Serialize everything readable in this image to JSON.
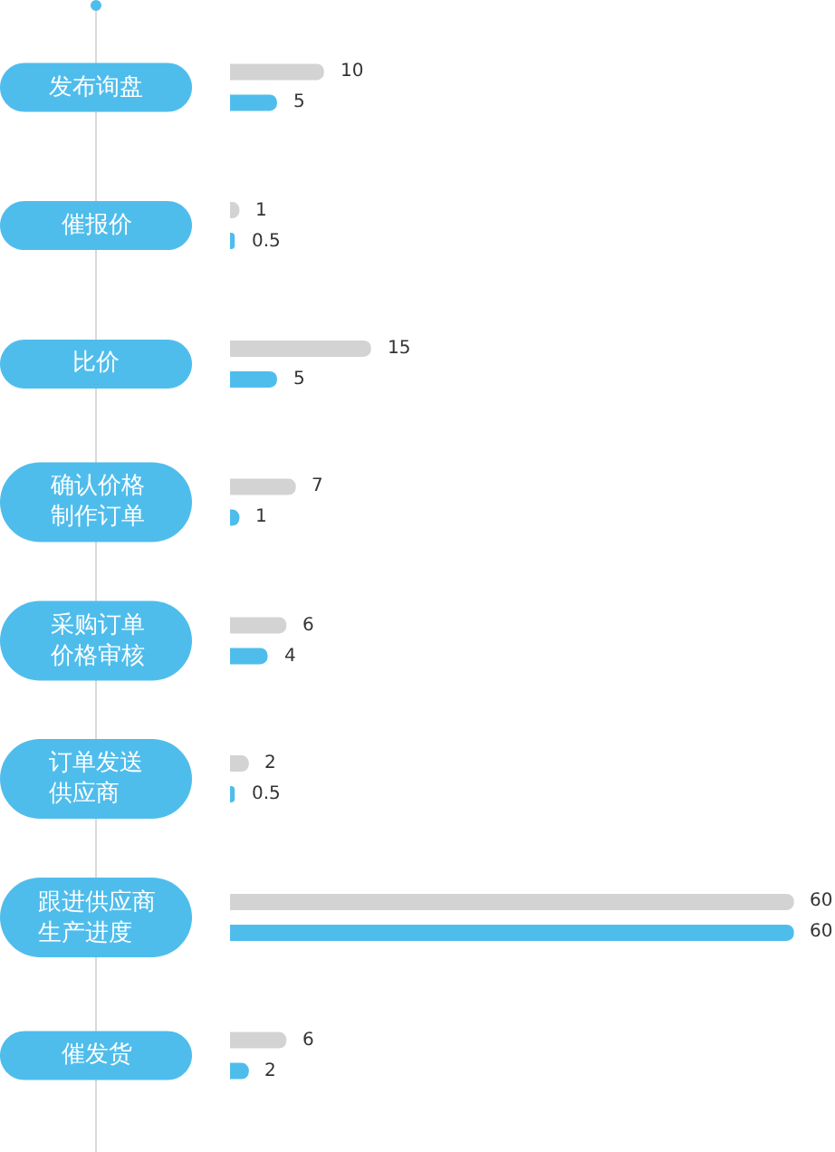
{
  "chart_data": {
    "type": "bar",
    "orientation": "horizontal",
    "categories": [
      "发布询盘",
      "催报价",
      "比价",
      "确认价格制作订单",
      "采购订单价格审核",
      "订单发送供应商",
      "跟进供应商生产进度",
      "催发货"
    ],
    "series": [
      {
        "color": "#d3d3d3",
        "values": [
          10,
          1,
          15,
          7,
          6,
          2,
          60,
          6
        ]
      },
      {
        "color": "#4fbdec",
        "values": [
          5,
          0.5,
          5,
          1,
          4,
          0.5,
          60,
          2
        ]
      }
    ],
    "data_labels": true,
    "tick_labels": "y"
  }
}
